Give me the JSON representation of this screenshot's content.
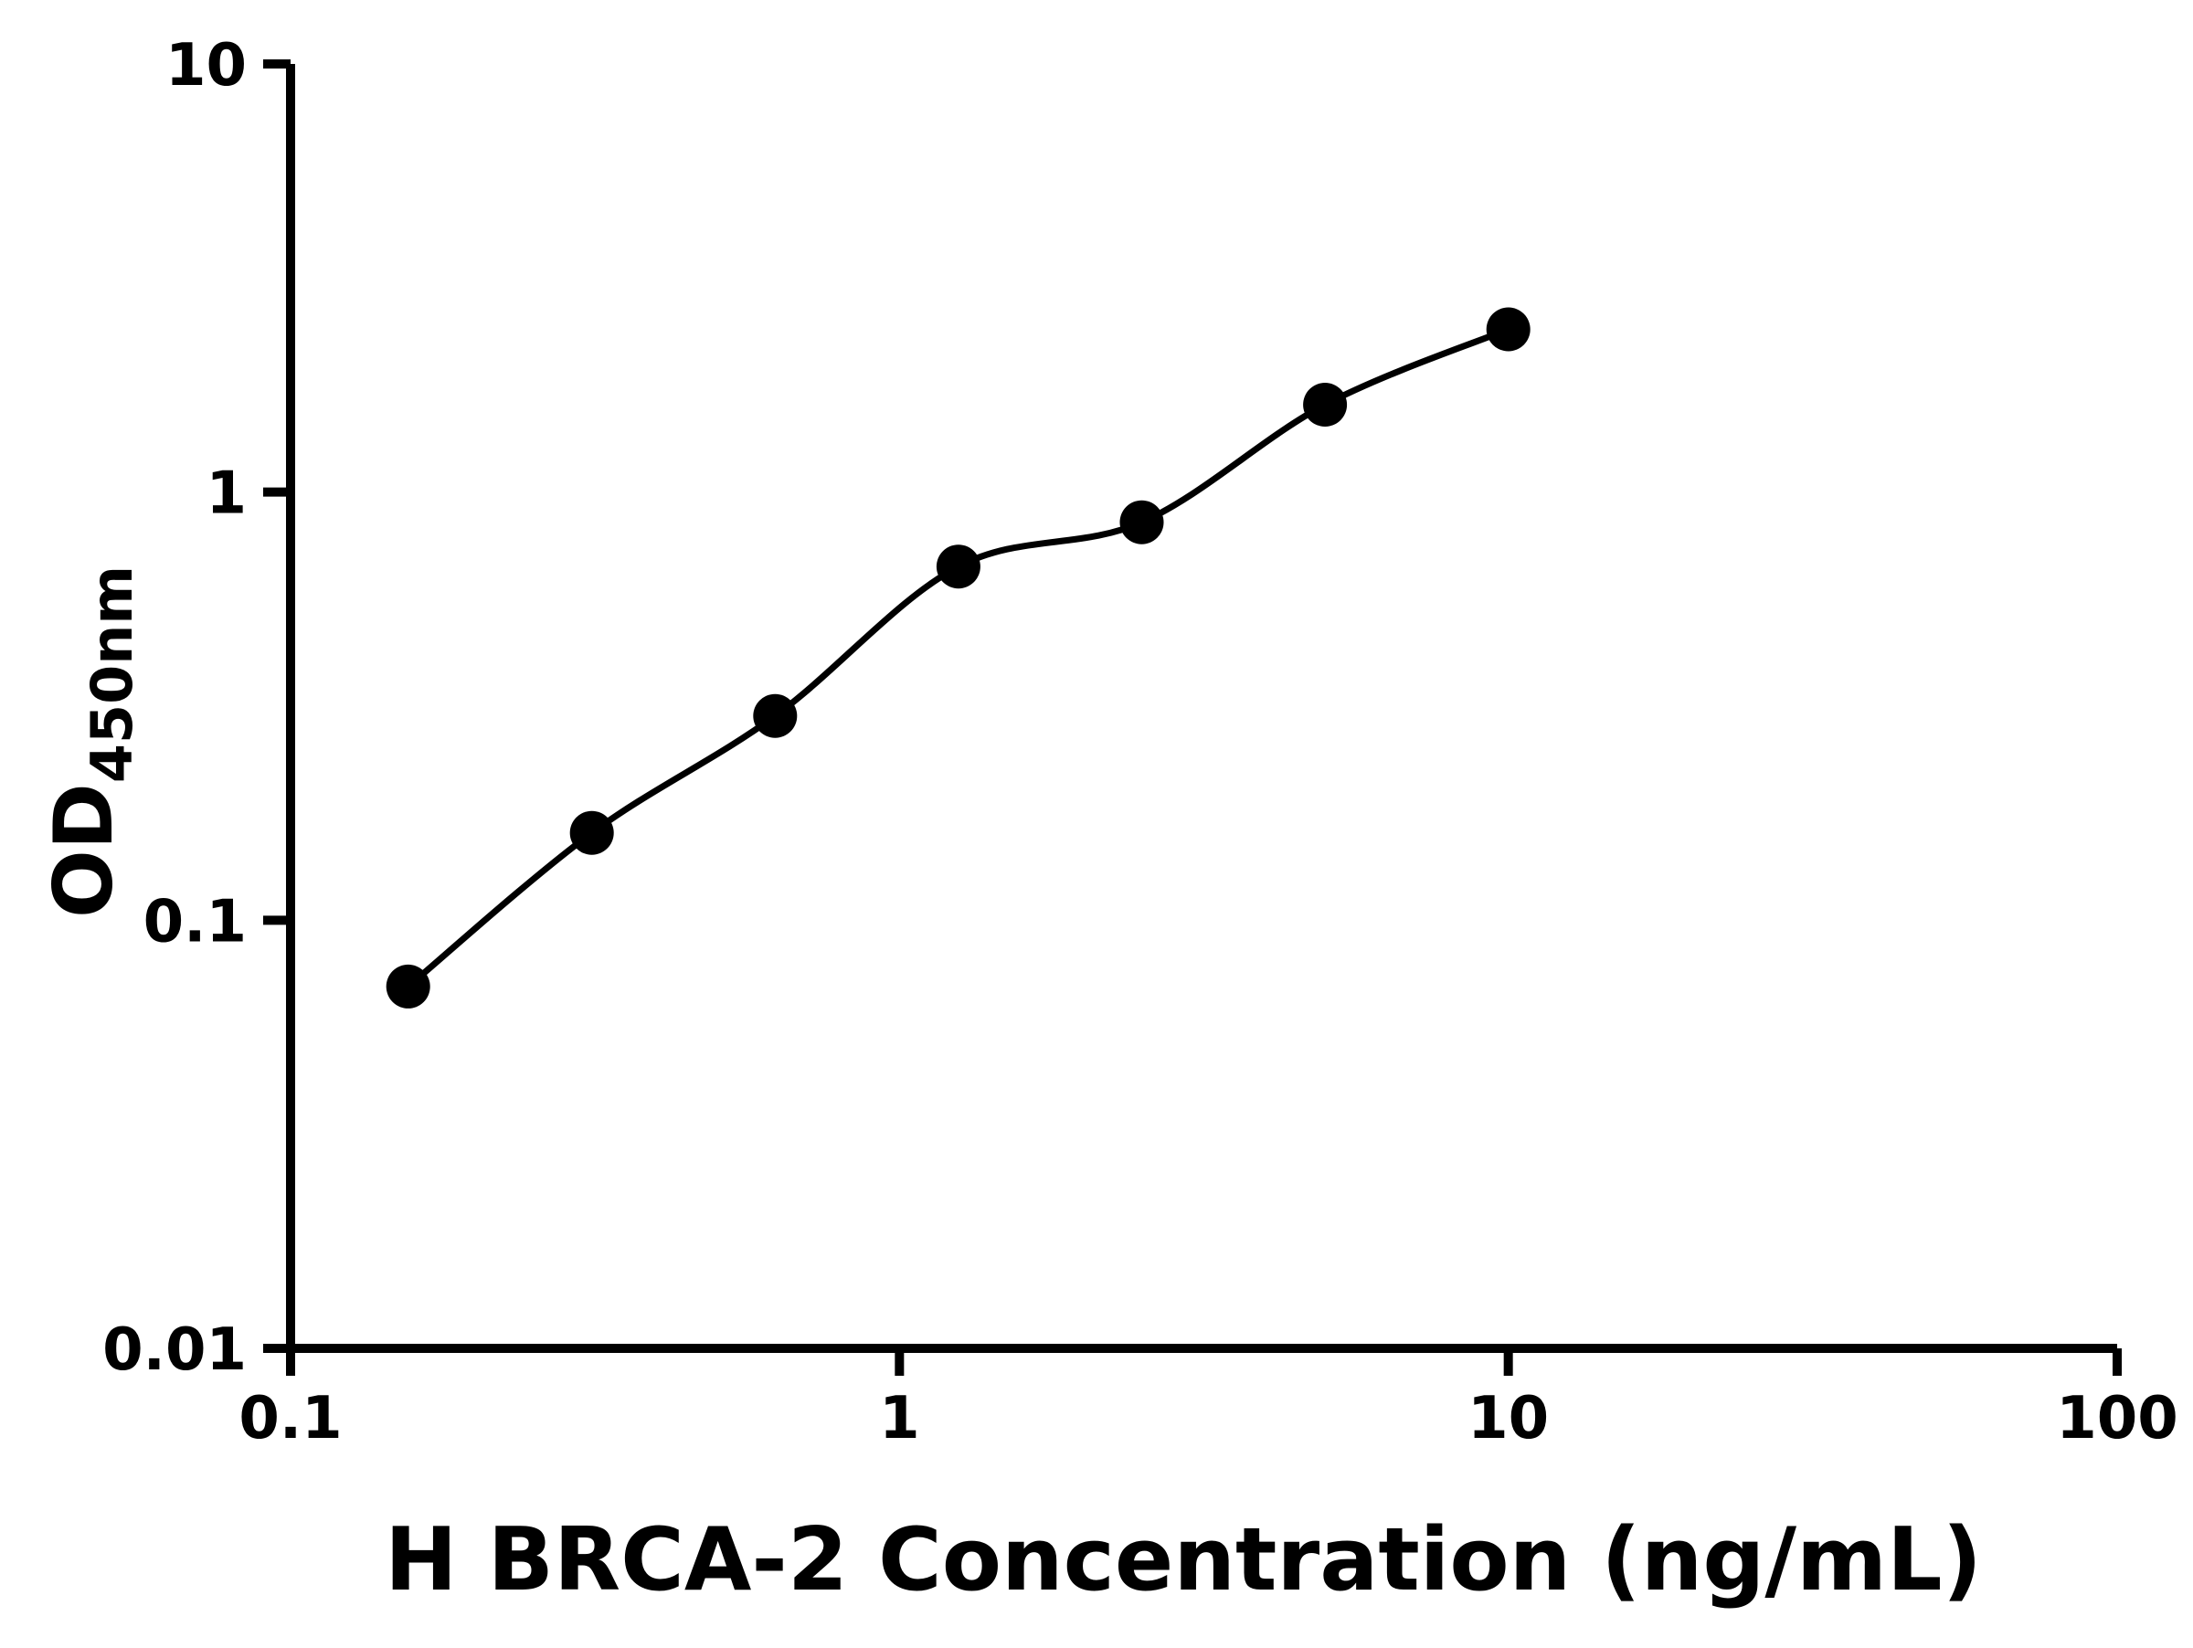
{
  "chart": {
    "x_axis_title": "H BRCA-2 Concentration (ng/mL)",
    "y_axis_title_main": "OD",
    "y_axis_title_sub": "450nm",
    "x_tick_labels": [
      "0.1",
      "1",
      "10",
      "100"
    ],
    "y_tick_labels": [
      "0.01",
      "0.1",
      "1",
      "10"
    ]
  },
  "chart_data": {
    "type": "scatter",
    "title": "",
    "xlabel": "H BRCA-2 Concentration (ng/mL)",
    "ylabel": "OD450nm",
    "xscale": "log",
    "yscale": "log",
    "xlim": [
      0.1,
      100
    ],
    "ylim": [
      0.01,
      10
    ],
    "x": [
      0.156,
      0.3125,
      0.625,
      1.25,
      2.5,
      5,
      10
    ],
    "y": [
      0.07,
      0.16,
      0.3,
      0.67,
      0.85,
      1.6,
      2.4
    ],
    "fit_line": true,
    "marker_color": "#000000",
    "line_color": "#000000",
    "background_color": "#ffffff",
    "grid": false,
    "legend": false
  }
}
